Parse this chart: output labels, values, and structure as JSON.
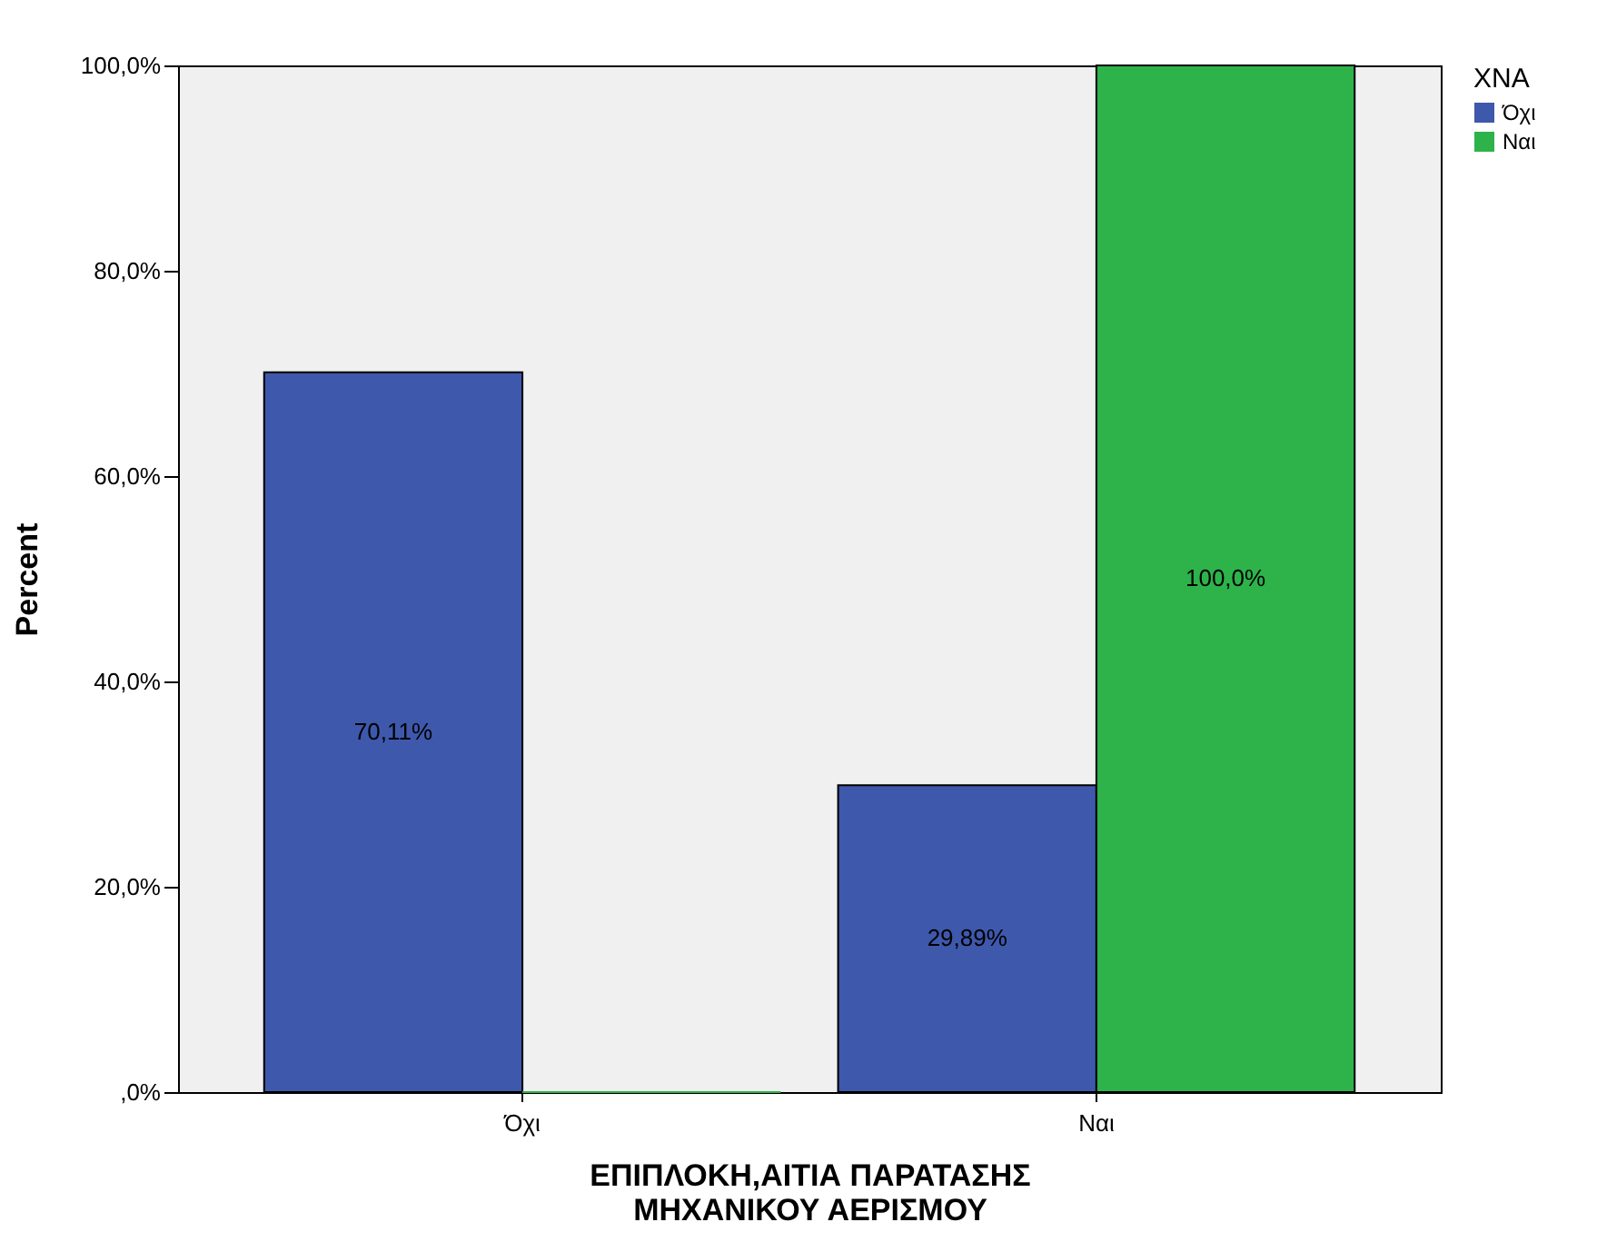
{
  "chart_data": {
    "type": "bar",
    "xlabel": "ΕΠΙΠΛΟΚΗ,ΑΙΤΙΑ ΠΑΡΑΤΑΣΗΣ ΜΗΧΑΝΙΚΟΥ ΑΕΡΙΣΜΟΥ",
    "ylabel": "Percent",
    "legend_title": "ΧΝΑ",
    "categories": [
      "Όχι",
      "Ναι"
    ],
    "series": [
      {
        "name": "Όχι",
        "color": "#3e58ac",
        "values": [
          70.11,
          29.89
        ],
        "value_labels": [
          "70,11%",
          "29,89%"
        ]
      },
      {
        "name": "Ναι",
        "color": "#2db34a",
        "values": [
          0,
          100
        ],
        "value_labels": [
          null,
          "100,0%"
        ]
      }
    ],
    "ylim": [
      0,
      100
    ],
    "yticks": [
      {
        "value": 0,
        "label": ",0%"
      },
      {
        "value": 20,
        "label": "20,0%"
      },
      {
        "value": 40,
        "label": "40,0%"
      },
      {
        "value": 60,
        "label": "60,0%"
      },
      {
        "value": 80,
        "label": "80,0%"
      },
      {
        "value": 100,
        "label": "100,0%"
      }
    ],
    "grid": false,
    "legend": "top right"
  }
}
